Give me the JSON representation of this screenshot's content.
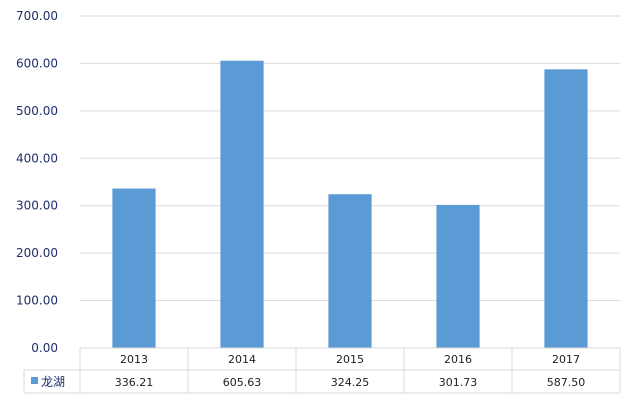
{
  "chart_data": {
    "type": "bar",
    "categories": [
      "2013",
      "2014",
      "2015",
      "2016",
      "2017"
    ],
    "series": [
      {
        "name": "龙湖",
        "values": [
          336.21,
          605.63,
          324.25,
          301.73,
          587.5
        ]
      }
    ],
    "value_labels": [
      "336.21",
      "605.63",
      "324.25",
      "301.73",
      "587.50"
    ],
    "yticks": [
      "0.00",
      "100.00",
      "200.00",
      "300.00",
      "400.00",
      "500.00",
      "600.00",
      "700.00"
    ],
    "ylim": [
      0,
      700
    ],
    "grid": true,
    "legend_position": "data-table-left",
    "colors": {
      "bar": "#5b9bd5",
      "grid": "#d9d9d9",
      "axis_text": "#1f2d6b"
    }
  }
}
